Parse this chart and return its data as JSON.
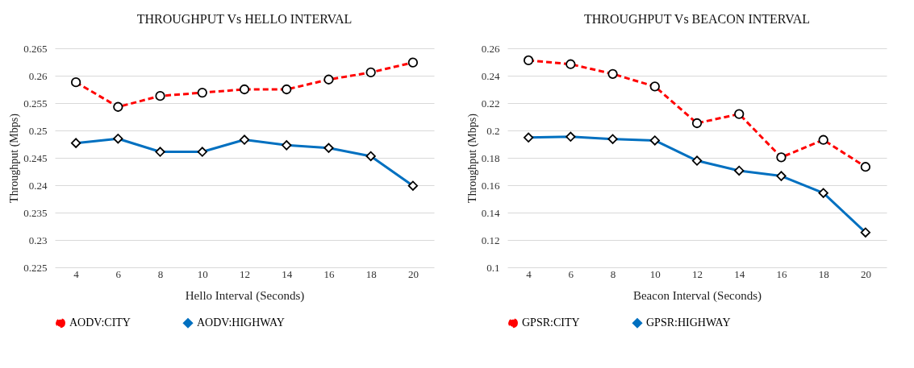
{
  "chart_data": [
    {
      "type": "line",
      "title": "THROUGHPUT  Vs HELLO INTERVAL",
      "xlabel": "Hello Interval (Seconds)",
      "ylabel": "Throughput (Mbps)",
      "categories": [
        "4",
        "6",
        "8",
        "10",
        "12",
        "14",
        "16",
        "18",
        "20"
      ],
      "series": [
        {
          "name": "AODV:CITY",
          "color": "#ff0000",
          "marker": "circle",
          "line_style": "dashed",
          "values": [
            0.2588,
            0.2543,
            0.2563,
            0.2569,
            0.2575,
            0.2575,
            0.2593,
            0.2606,
            0.2624
          ]
        },
        {
          "name": "AODV:HIGHWAY",
          "color": "#0070c0",
          "marker": "diamond",
          "line_style": "solid",
          "values": [
            0.2477,
            0.2485,
            0.2461,
            0.2461,
            0.2483,
            0.2473,
            0.2468,
            0.2453,
            0.2399
          ]
        }
      ],
      "ylim": [
        0.225,
        0.265
      ],
      "yticks": [
        0.225,
        0.23,
        0.235,
        0.24,
        0.245,
        0.25,
        0.255,
        0.26,
        0.265
      ],
      "grid": "y",
      "legend": "bottom"
    },
    {
      "type": "line",
      "title": "THROUGHPUT  Vs BEACON INTERVAL",
      "xlabel": "Beacon Interval (Seconds)",
      "ylabel": "Throughput (Mbps)",
      "categories": [
        "4",
        "6",
        "8",
        "10",
        "12",
        "14",
        "16",
        "18",
        "20"
      ],
      "series": [
        {
          "name": "GPSR:CITY",
          "color": "#ff0000",
          "marker": "circle",
          "line_style": "dashed",
          "values": [
            0.2512,
            0.2484,
            0.2413,
            0.2321,
            0.2053,
            0.212,
            0.1804,
            0.1931,
            0.1734
          ]
        },
        {
          "name": "GPSR:HIGHWAY",
          "color": "#0070c0",
          "marker": "diamond",
          "line_style": "solid",
          "values": [
            0.1948,
            0.1954,
            0.1937,
            0.1927,
            0.1779,
            0.1706,
            0.1667,
            0.1543,
            0.1255
          ]
        }
      ],
      "ylim": [
        0.1,
        0.26
      ],
      "yticks": [
        0.1,
        0.12,
        0.14,
        0.16,
        0.18,
        0.2,
        0.22,
        0.24,
        0.26
      ],
      "grid": "y",
      "legend": "bottom"
    }
  ]
}
